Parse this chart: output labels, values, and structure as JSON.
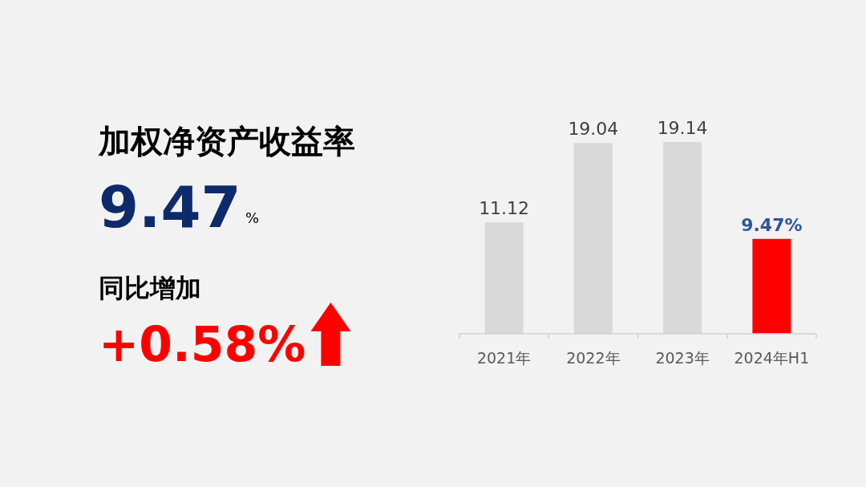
{
  "chart_data": {
    "type": "bar",
    "categories": [
      "2021年",
      "2022年",
      "2023年",
      "2024年H1"
    ],
    "values": [
      11.12,
      19.04,
      19.14,
      9.47
    ],
    "colors": [
      "#d9d9d9",
      "#d9d9d9",
      "#d9d9d9",
      "#ff0000"
    ],
    "value_labels": [
      "11.12",
      "19.04",
      "19.14",
      "9.47%"
    ],
    "annotations": [
      "加权净资产收益率",
      "9.47",
      "%",
      "同比增加",
      "+0.58%"
    ]
  }
}
